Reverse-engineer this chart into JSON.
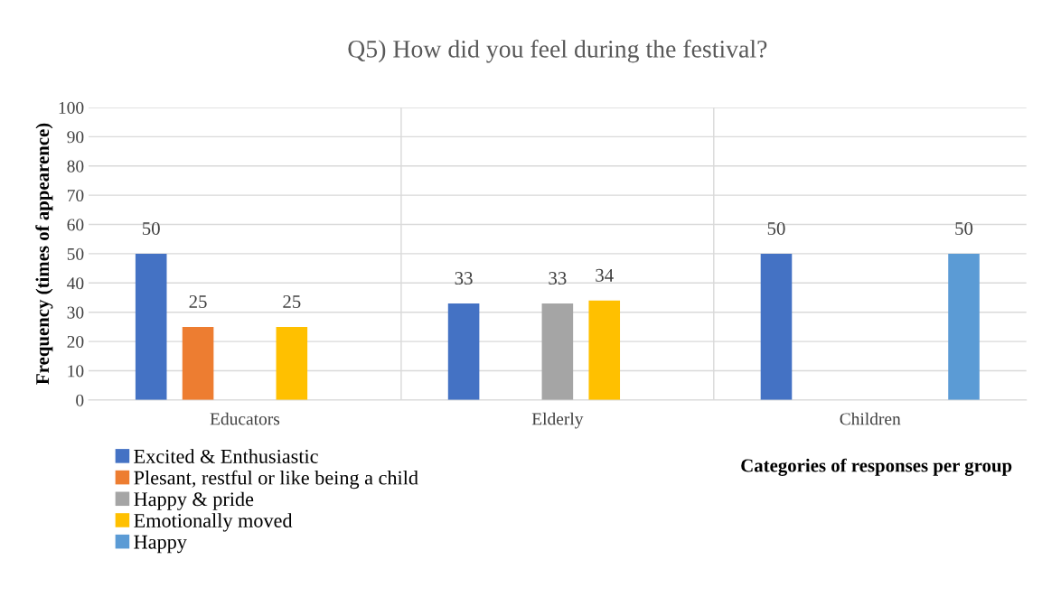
{
  "chart_data": {
    "type": "bar",
    "title": "Q5) How did you feel during the festival?",
    "xlabel": "Categories of responses per group",
    "ylabel": "Frequency (times of appearence)",
    "categories": [
      "Educators",
      "Elderly",
      "Children"
    ],
    "series": [
      {
        "name": "Excited & Enthusiastic",
        "color": "#4472c4",
        "values": [
          50,
          33,
          50
        ]
      },
      {
        "name": "Plesant, restful or like being a child",
        "color": "#ed7d31",
        "values": [
          25,
          null,
          null
        ]
      },
      {
        "name": "Happy & pride",
        "color": "#a5a5a5",
        "values": [
          null,
          33,
          null
        ]
      },
      {
        "name": "Emotionally moved",
        "color": "#ffc000",
        "values": [
          25,
          34,
          null
        ]
      },
      {
        "name": "Happy",
        "color": "#5b9bd5",
        "values": [
          null,
          null,
          50
        ]
      }
    ],
    "ylim": [
      0,
      100
    ],
    "yticks": [
      0,
      10,
      20,
      30,
      40,
      50,
      60,
      70,
      80,
      90,
      100
    ],
    "grid": true,
    "legend": "bottom left",
    "data_labels": true
  }
}
